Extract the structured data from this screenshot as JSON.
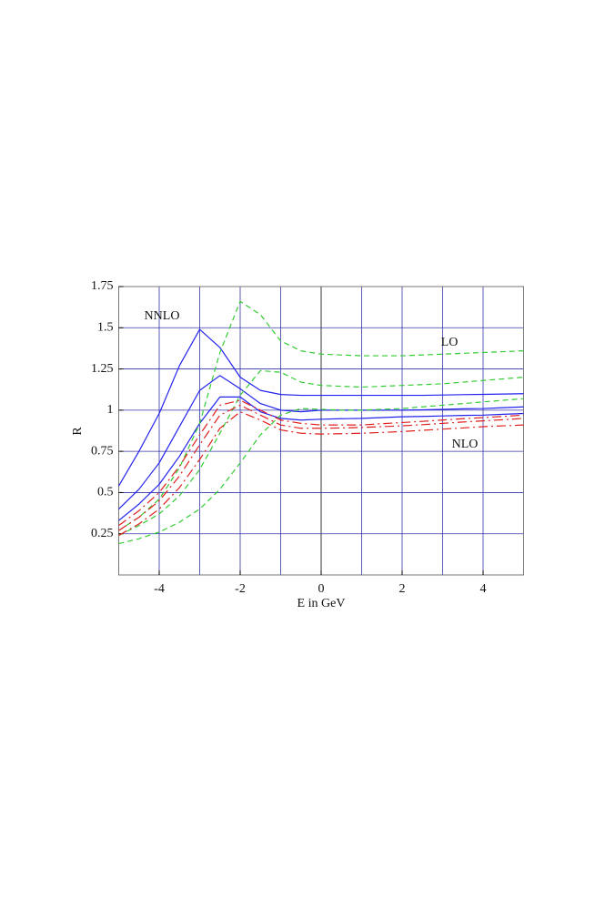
{
  "chart_data": {
    "type": "line",
    "xlabel": "E in GeV",
    "ylabel": "R",
    "x": [
      -5,
      -4.5,
      -4,
      -3.5,
      -3,
      -2.5,
      -2,
      -1.5,
      -1,
      -0.5,
      0,
      0.5,
      1,
      1.5,
      2,
      2.5,
      3,
      3.5,
      4,
      4.5,
      5
    ],
    "groups": [
      {
        "name": "NNLO",
        "color": "#2222ee",
        "dash": "none",
        "curves": [
          [
            0.54,
            0.75,
            0.98,
            1.27,
            1.49,
            1.38,
            1.2,
            1.12,
            1.095,
            1.09,
            1.09,
            1.09,
            1.09,
            1.09,
            1.09,
            1.09,
            1.092,
            1.094,
            1.096,
            1.098,
            1.1
          ],
          [
            0.4,
            0.52,
            0.68,
            0.9,
            1.12,
            1.21,
            1.13,
            1.04,
            1.0,
            0.99,
            1.0,
            1.0,
            1.0,
            1.0,
            1.0,
            1.002,
            1.005,
            1.008,
            1.01,
            1.015,
            1.02
          ],
          [
            0.33,
            0.43,
            0.55,
            0.72,
            0.92,
            1.08,
            1.08,
            0.99,
            0.95,
            0.94,
            0.945,
            0.948,
            0.95,
            0.955,
            0.96,
            0.962,
            0.965,
            0.968,
            0.97,
            0.975,
            0.98
          ]
        ]
      },
      {
        "name": "LO",
        "color": "#33cc33",
        "dash": "6,4",
        "curves": [
          [
            0.27,
            0.35,
            0.46,
            0.65,
            0.92,
            1.35,
            1.66,
            1.58,
            1.42,
            1.36,
            1.34,
            1.335,
            1.33,
            1.33,
            1.33,
            1.335,
            1.34,
            1.345,
            1.35,
            1.355,
            1.36
          ],
          [
            0.24,
            0.3,
            0.37,
            0.48,
            0.64,
            0.86,
            1.09,
            1.24,
            1.23,
            1.17,
            1.15,
            1.145,
            1.14,
            1.145,
            1.15,
            1.155,
            1.16,
            1.17,
            1.18,
            1.19,
            1.2
          ],
          [
            0.19,
            0.22,
            0.26,
            0.32,
            0.4,
            0.52,
            0.68,
            0.85,
            0.97,
            1.01,
            1.005,
            1.0,
            1.0,
            1.005,
            1.01,
            1.02,
            1.03,
            1.04,
            1.05,
            1.06,
            1.07
          ]
        ]
      },
      {
        "name": "NLO",
        "color": "#e02020",
        "dash": "10,4,2,4",
        "curves": [
          [
            0.3,
            0.39,
            0.5,
            0.66,
            0.85,
            1.03,
            1.06,
            1.0,
            0.94,
            0.92,
            0.91,
            0.91,
            0.91,
            0.918,
            0.925,
            0.932,
            0.94,
            0.948,
            0.955,
            0.962,
            0.97
          ],
          [
            0.27,
            0.35,
            0.45,
            0.6,
            0.79,
            0.97,
            1.03,
            0.97,
            0.91,
            0.89,
            0.89,
            0.892,
            0.895,
            0.9,
            0.905,
            0.912,
            0.92,
            0.928,
            0.935,
            0.942,
            0.95
          ],
          [
            0.24,
            0.31,
            0.4,
            0.53,
            0.7,
            0.89,
            0.99,
            0.94,
            0.88,
            0.86,
            0.855,
            0.857,
            0.86,
            0.865,
            0.87,
            0.878,
            0.885,
            0.892,
            0.9,
            0.905,
            0.91
          ]
        ]
      }
    ],
    "xlim": [
      -5,
      5
    ],
    "ylim": [
      0,
      1.75
    ],
    "xticks": [
      -4,
      -2,
      0,
      2,
      4
    ],
    "xgrid": [
      -4,
      -3,
      -2,
      -1,
      0,
      1,
      2,
      3,
      4
    ],
    "yticks": [
      0.25,
      0.5,
      0.75,
      1,
      1.25,
      1.5,
      1.75
    ],
    "grid": true
  }
}
